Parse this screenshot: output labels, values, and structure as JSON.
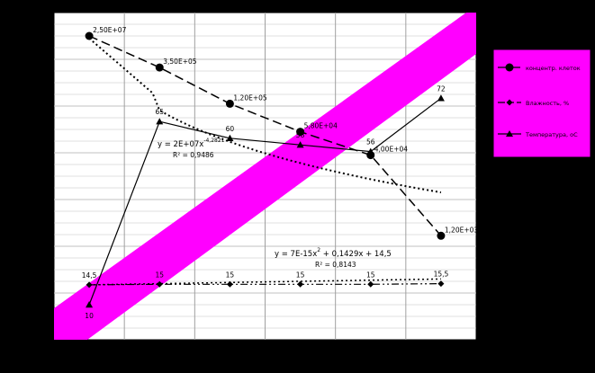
{
  "chart_data": {
    "type": "line",
    "title": "",
    "xlabel": "",
    "ylabel": "",
    "x": [
      1,
      2,
      3,
      4,
      5,
      6
    ],
    "plot_background": "#FFFFFF",
    "page_background": "#000000",
    "grid": true,
    "legend_position": "right",
    "legend_background": "#FF00FF",
    "band_color": "#FF00FF",
    "series": [
      {
        "key": "concentration",
        "name": "концентр. клеток",
        "display_values": [
          26,
          23.3,
          20.2,
          17.8,
          15.8,
          8.9
        ],
        "data_labels": [
          "2,50E+07",
          "3,50E+05",
          "1,20E+05",
          "5,80E+04",
          "4,00E+04",
          "1,20E+03"
        ],
        "label_positions": [
          "right",
          "right",
          "right",
          "right",
          "right",
          "right"
        ],
        "marker": "circle",
        "line_style": "dash",
        "color": "#000000"
      },
      {
        "key": "moisture",
        "name": "Влажность, %",
        "display_values": [
          14.5,
          15,
          15,
          15,
          15,
          15.5
        ],
        "data_labels": [
          "14,5",
          "15",
          "15",
          "15",
          "15",
          "15,5"
        ],
        "label_positions": [
          "above",
          "above",
          "above",
          "above",
          "above",
          "above"
        ],
        "marker": "diamond",
        "line_style": "dashdotdot",
        "color": "#000000"
      },
      {
        "key": "temperature",
        "name": "Температура, оС",
        "display_values": [
          10,
          65,
          60,
          58,
          56,
          72
        ],
        "data_labels": [
          "10",
          "65",
          "60",
          "58",
          "56",
          "72"
        ],
        "label_positions": [
          "below",
          "above",
          "above",
          "above",
          "above",
          "above"
        ],
        "marker": "triangle",
        "line_style": "solid",
        "color": "#000000"
      }
    ],
    "trendlines": [
      {
        "series": "concentration",
        "type": "power",
        "equation_text": "y = 2E+07x",
        "equation_exponent": "-4,2821",
        "r2_text": "R² = 0,9486",
        "line_style": "dot"
      },
      {
        "series": "moisture",
        "type": "polynomial",
        "equation_text": "y = 7E-15x",
        "equation_exponent": "2",
        "equation_rest": " + 0,1429x + 14,5",
        "r2_text": "R² = 0,8143",
        "line_style": "dot"
      }
    ]
  }
}
